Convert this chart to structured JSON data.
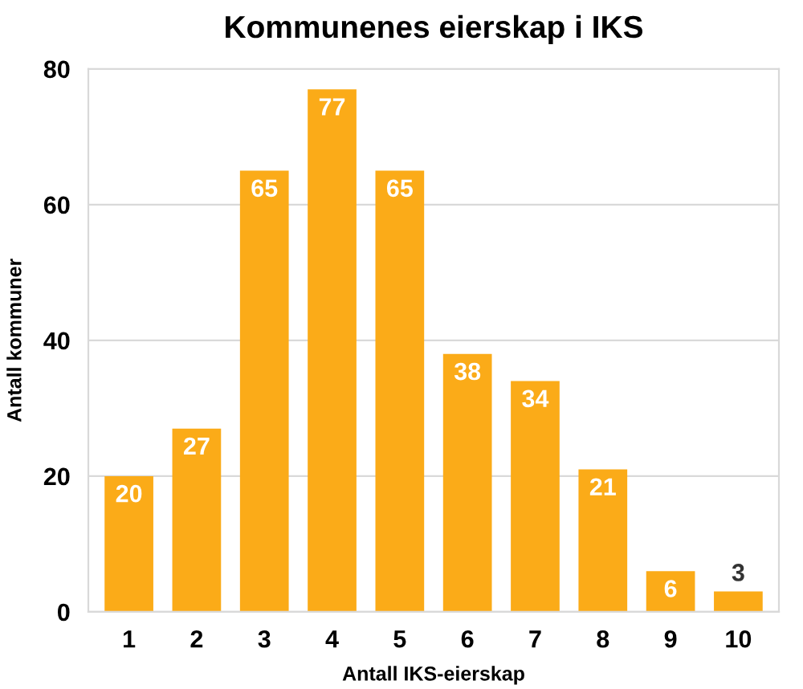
{
  "chart_data": {
    "type": "bar",
    "title": "Kommunenes eierskap i IKS",
    "xlabel": "Antall IKS-eierskap",
    "ylabel": "Antall kommuner",
    "categories": [
      "1",
      "2",
      "3",
      "4",
      "5",
      "6",
      "7",
      "8",
      "9",
      "10"
    ],
    "values": [
      20,
      27,
      65,
      77,
      65,
      38,
      34,
      21,
      6,
      3
    ],
    "color": "#fbab18",
    "ylim": [
      0,
      80
    ],
    "yticks": [
      0,
      20,
      40,
      60,
      80
    ],
    "grid": "y",
    "data_labels": true
  }
}
